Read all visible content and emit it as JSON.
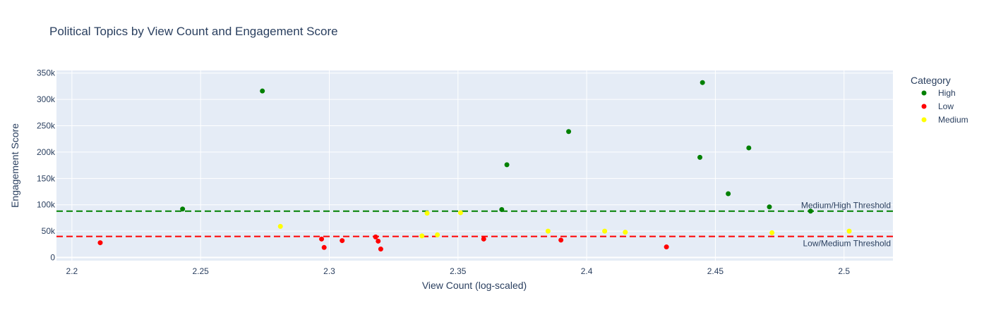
{
  "chart_data": {
    "type": "scatter",
    "title": "Political Topics by View Count and Engagement Score",
    "xlabel": "View Count (log-scaled)",
    "ylabel": "Engagement Score",
    "xlim": [
      2.194,
      2.519
    ],
    "ylim": [
      -6000,
      355000
    ],
    "x_ticks": [
      2.2,
      2.25,
      2.3,
      2.35,
      2.4,
      2.45,
      2.5
    ],
    "x_tick_labels": [
      "2.2",
      "2.25",
      "2.3",
      "2.35",
      "2.4",
      "2.45",
      "2.5"
    ],
    "y_ticks": [
      0,
      50000,
      100000,
      150000,
      200000,
      250000,
      300000,
      350000
    ],
    "y_tick_labels": [
      "0",
      "50k",
      "100k",
      "150k",
      "200k",
      "250k",
      "300k",
      "350k"
    ],
    "grid": true,
    "legend": {
      "title": "Category",
      "position": "right"
    },
    "series": [
      {
        "name": "High",
        "color": "#008000",
        "points": [
          [
            2.243,
            92000
          ],
          [
            2.274,
            316000
          ],
          [
            2.367,
            91000
          ],
          [
            2.369,
            176000
          ],
          [
            2.393,
            239000
          ],
          [
            2.444,
            190000
          ],
          [
            2.445,
            332000
          ],
          [
            2.455,
            121000
          ],
          [
            2.463,
            208000
          ],
          [
            2.471,
            96000
          ],
          [
            2.487,
            88000
          ]
        ]
      },
      {
        "name": "Low",
        "color": "#ff0000",
        "points": [
          [
            2.211,
            28000
          ],
          [
            2.297,
            35000
          ],
          [
            2.298,
            19000
          ],
          [
            2.305,
            32000
          ],
          [
            2.318,
            39000
          ],
          [
            2.319,
            31000
          ],
          [
            2.32,
            16000
          ],
          [
            2.36,
            35000
          ],
          [
            2.39,
            33000
          ],
          [
            2.431,
            20000
          ]
        ]
      },
      {
        "name": "Medium",
        "color": "#ffff00",
        "points": [
          [
            2.281,
            59000
          ],
          [
            2.336,
            41000
          ],
          [
            2.338,
            84000
          ],
          [
            2.342,
            43000
          ],
          [
            2.351,
            85000
          ],
          [
            2.385,
            50000
          ],
          [
            2.407,
            50000
          ],
          [
            2.415,
            48000
          ],
          [
            2.472,
            47000
          ],
          [
            2.502,
            50000
          ]
        ]
      }
    ],
    "thresholds": [
      {
        "label": "Medium/High Threshold",
        "value": 88000,
        "color": "#008000"
      },
      {
        "label": "Low/Medium Threshold",
        "value": 40000,
        "color": "#ff0000"
      }
    ]
  }
}
